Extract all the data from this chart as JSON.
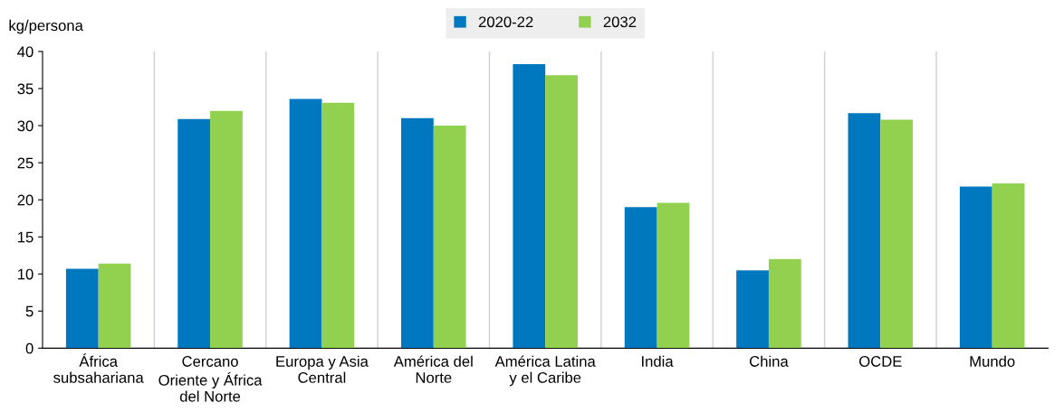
{
  "chart_data": {
    "type": "bar",
    "ylabel": "kg/persona",
    "categories": [
      "África\nsubsahariana",
      "Cercano\nOriente y África\ndel Norte",
      "Europa y Asia\nCentral",
      "América del\nNorte",
      "América Latina\ny el Caribe",
      "India",
      "China",
      "OCDE",
      "Mundo"
    ],
    "series": [
      {
        "name": "2020-22",
        "color": "#0078c0",
        "values": [
          10.7,
          30.9,
          33.6,
          31.0,
          38.3,
          19.0,
          10.5,
          31.7,
          21.8
        ]
      },
      {
        "name": "2032",
        "color": "#92d050",
        "values": [
          11.4,
          32.0,
          33.1,
          30.0,
          36.8,
          19.6,
          12.0,
          30.8,
          22.2
        ]
      }
    ],
    "ylim": [
      0,
      40
    ],
    "yticks": [
      0,
      5,
      10,
      15,
      20,
      25,
      30,
      35,
      40
    ],
    "grid": "x",
    "legend": "top"
  }
}
